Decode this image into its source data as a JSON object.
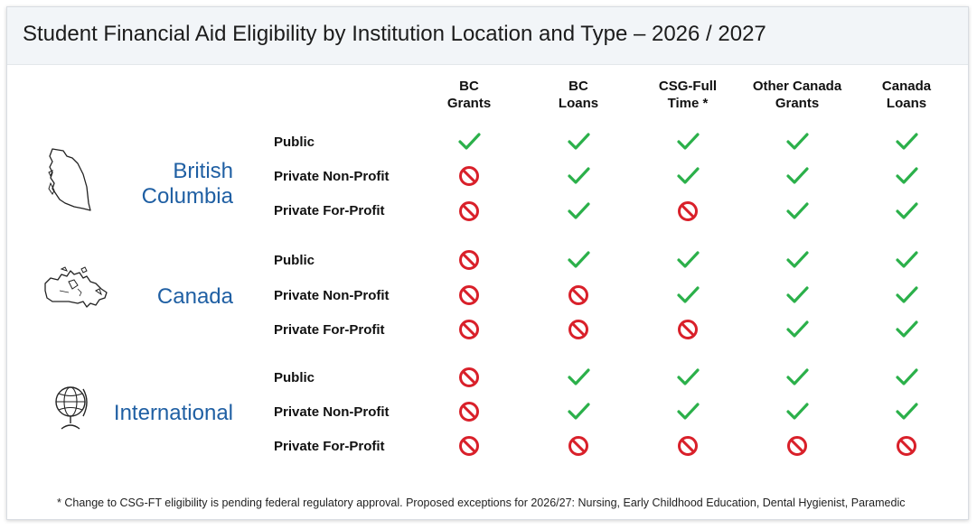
{
  "title": "Student Financial Aid Eligibility by Institution Location and Type – 2026 / 2027",
  "columns": [
    {
      "line1": "BC",
      "line2": "Grants"
    },
    {
      "line1": "BC",
      "line2": "Loans"
    },
    {
      "line1": "CSG-Full",
      "line2": "Time *"
    },
    {
      "line1": "Other Canada",
      "line2": "Grants"
    },
    {
      "line1": "Canada",
      "line2": "Loans"
    }
  ],
  "regions": [
    {
      "label_line1": "British",
      "label_line2": "Columbia",
      "icon": "bc-map-icon",
      "rows": [
        {
          "label": "Public",
          "eligibility": [
            "eligible",
            "eligible",
            "eligible",
            "eligible",
            "eligible"
          ]
        },
        {
          "label": "Private Non-Profit",
          "eligibility": [
            "not-eligible",
            "eligible",
            "eligible",
            "eligible",
            "eligible"
          ]
        },
        {
          "label": "Private For-Profit",
          "eligibility": [
            "not-eligible",
            "eligible",
            "not-eligible",
            "eligible",
            "eligible"
          ]
        }
      ]
    },
    {
      "label_line1": "Canada",
      "label_line2": "",
      "icon": "canada-map-icon",
      "rows": [
        {
          "label": "Public",
          "eligibility": [
            "not-eligible",
            "eligible",
            "eligible",
            "eligible",
            "eligible"
          ]
        },
        {
          "label": "Private Non-Profit",
          "eligibility": [
            "not-eligible",
            "not-eligible",
            "eligible",
            "eligible",
            "eligible"
          ]
        },
        {
          "label": "Private For-Profit",
          "eligibility": [
            "not-eligible",
            "not-eligible",
            "not-eligible",
            "eligible",
            "eligible"
          ]
        }
      ]
    },
    {
      "label_line1": "International",
      "label_line2": "",
      "icon": "globe-icon",
      "rows": [
        {
          "label": "Public",
          "eligibility": [
            "not-eligible",
            "eligible",
            "eligible",
            "eligible",
            "eligible"
          ]
        },
        {
          "label": "Private Non-Profit",
          "eligibility": [
            "not-eligible",
            "eligible",
            "eligible",
            "eligible",
            "eligible"
          ]
        },
        {
          "label": "Private For-Profit",
          "eligibility": [
            "not-eligible",
            "not-eligible",
            "not-eligible",
            "not-eligible",
            "not-eligible"
          ]
        }
      ]
    }
  ],
  "colors": {
    "eligible": "#2bb04a",
    "not_eligible": "#d9202a",
    "region_label": "#1f5fa3"
  },
  "footnote": "* Change to CSG-FT eligibility is pending federal regulatory approval. Proposed exceptions for 2026/27: Nursing, Early Childhood Education, Dental Hygienist, Paramedic"
}
